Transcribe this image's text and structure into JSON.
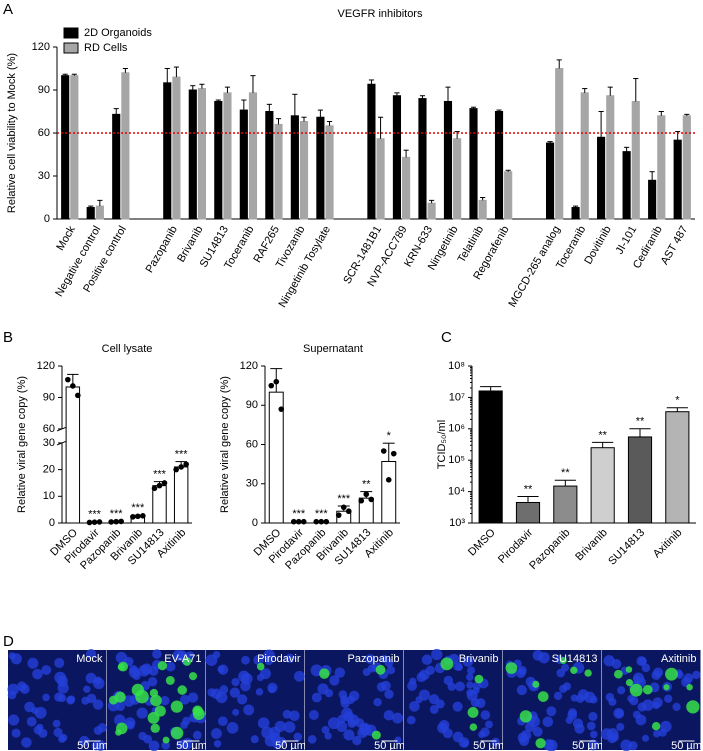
{
  "panel_labels": [
    "A",
    "B",
    "C",
    "D"
  ],
  "chart_data": [
    {
      "type": "bar",
      "title": "VEGFR inhibitors",
      "ylabel": "Relative cell viability to Mock (%)",
      "categories": [
        "Mock",
        "Negative control",
        "Positive control",
        null,
        "Pazopanib",
        "Brivanib",
        "SU14813",
        "Toceranib",
        "RAF265",
        "Tivozanib",
        "Ningetinib Tosylate",
        null,
        "SCR-1481B1",
        "NVP-ACC789",
        "KRN-633",
        "Ningetinib",
        "Telatinib",
        "Regorafenib",
        null,
        "MGCD-265 analog",
        "Toceranib",
        "Dovitinib",
        "JI-101",
        "Cediranib",
        "AST 487"
      ],
      "series": [
        {
          "name": "2D Organoids",
          "color": "#000000",
          "values": [
            100,
            8,
            73,
            null,
            95,
            90,
            82,
            76,
            75,
            72,
            71,
            null,
            94,
            86,
            84,
            82,
            77,
            75,
            null,
            53,
            8,
            57,
            47,
            27,
            55
          ],
          "errors": [
            1,
            1,
            4,
            null,
            10,
            3,
            1,
            7,
            5,
            15,
            5,
            null,
            3,
            2,
            2,
            10,
            1,
            1,
            null,
            1,
            1,
            18,
            3,
            6,
            6
          ]
        },
        {
          "name": "RD Cells",
          "color": "#a6a6a6",
          "values": [
            100,
            9,
            102,
            null,
            99,
            91,
            88,
            88,
            66,
            68,
            65,
            null,
            56,
            43,
            11,
            56,
            13,
            33,
            null,
            105,
            88,
            86,
            82,
            72,
            72
          ],
          "errors": [
            1,
            4,
            3,
            null,
            7,
            3,
            4,
            12,
            4,
            3,
            3,
            null,
            15,
            5,
            2,
            5,
            2,
            1,
            null,
            6,
            3,
            6,
            16,
            3,
            1
          ]
        }
      ],
      "hline": {
        "value": 60,
        "color": "#e00000"
      },
      "ylim": [
        0,
        120
      ],
      "yticks": [
        0,
        30,
        60,
        90,
        120
      ],
      "legend": "upper left"
    },
    {
      "type": "bar",
      "title": "Cell lysate",
      "ylabel": "Relative viral gene copy (%)",
      "categories": [
        "DMSO",
        "Pirodavir",
        "Pazopanib",
        "Brivanib",
        "SU14813",
        "Axitinib"
      ],
      "values": [
        100,
        0.3,
        0.5,
        2.5,
        14,
        21
      ],
      "errors": [
        12,
        0.2,
        0.2,
        0.4,
        1.5,
        2
      ],
      "points": [
        [
          107,
          101,
          92
        ],
        [
          0.2,
          0.3,
          0.4
        ],
        [
          0.4,
          0.5,
          0.6
        ],
        [
          2.3,
          2.5,
          2.7
        ],
        [
          13,
          14,
          15
        ],
        [
          20,
          21,
          22
        ]
      ],
      "significance": [
        null,
        "***",
        "***",
        "***",
        "***",
        "***"
      ],
      "color": "#ffffff",
      "edgecolor": "#000000",
      "ylim": [
        0,
        120
      ],
      "ybreak": [
        30,
        60
      ],
      "yticks": [
        0,
        10,
        20,
        30,
        60,
        90,
        120
      ]
    },
    {
      "type": "bar",
      "title": "Supernatant",
      "ylabel": "Relative viral gene copy (%)",
      "categories": [
        "DMSO",
        "Pirodavir",
        "Pazopanib",
        "Brivanib",
        "SU14813",
        "Axitinib"
      ],
      "values": [
        100,
        1,
        1,
        9,
        19,
        47
      ],
      "errors": [
        18,
        0.5,
        0.5,
        4,
        5,
        14
      ],
      "points": [
        [
          105,
          108,
          87
        ],
        [
          1,
          1,
          1
        ],
        [
          1,
          1,
          1
        ],
        [
          6,
          12,
          9
        ],
        [
          17,
          22,
          18
        ],
        [
          55,
          33,
          53
        ]
      ],
      "significance": [
        null,
        "***",
        "***",
        "***",
        "**",
        "*"
      ],
      "color": "#ffffff",
      "edgecolor": "#000000",
      "ylim": [
        0,
        120
      ],
      "yticks": [
        0,
        30,
        60,
        90,
        120
      ]
    },
    {
      "type": "bar",
      "ylabel": "TCID₅₀/ml",
      "categories": [
        "DMSO",
        "Pirodavir",
        "Pazopanib",
        "Brivanib",
        "SU14813",
        "Axitinib"
      ],
      "values": [
        16000000,
        4500,
        15000,
        250000,
        550000,
        3500000
      ],
      "errors": [
        6000000,
        2500,
        8000,
        120000,
        450000,
        1200000
      ],
      "significance": [
        null,
        "**",
        "**",
        "**",
        "**",
        "*"
      ],
      "colors": [
        "#000000",
        "#6e6e6e",
        "#8c8c8c",
        "#cfcfcf",
        "#5a5a5a",
        "#b4b4b4"
      ],
      "edgecolor": "#000000",
      "log": true,
      "ylim": [
        1000,
        100000000
      ],
      "yticks": [
        {
          "value": 1000,
          "label": "10³"
        },
        {
          "value": 10000,
          "label": "10⁴"
        },
        {
          "value": 100000,
          "label": "10⁵"
        },
        {
          "value": 1000000,
          "label": "10⁶"
        },
        {
          "value": 10000000,
          "label": "10⁷"
        },
        {
          "value": 100000000,
          "label": "10⁸"
        }
      ]
    }
  ],
  "images": {
    "labels": [
      "Mock",
      "EV-A71",
      "Pirodavir",
      "Pazopanib",
      "Brivanib",
      "SU14813",
      "Axitinib"
    ],
    "scale_bar": "50 µm"
  }
}
